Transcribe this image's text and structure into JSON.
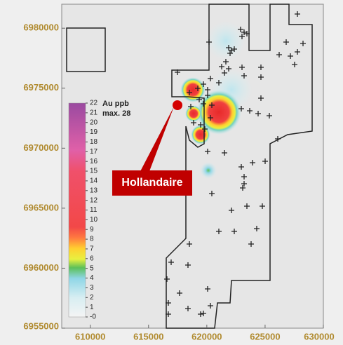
{
  "map": {
    "xlim": [
      607550,
      630000
    ],
    "ylim": [
      6955000,
      6982000
    ],
    "xticks": [
      610000,
      615000,
      620000,
      625000,
      630000
    ],
    "yticks": [
      6955000,
      6960000,
      6965000,
      6970000,
      6975000,
      6980000
    ],
    "legend": {
      "title": "Au ppb",
      "max": "max. 28",
      "labels": [
        22,
        21,
        20,
        19,
        18,
        17,
        16,
        15,
        14,
        13,
        12,
        11,
        10,
        9,
        8,
        7,
        6,
        5,
        4,
        3,
        2,
        1,
        {
          "value": 0,
          "label": "-0"
        }
      ]
    },
    "callout": "Hollandaire"
  }
}
